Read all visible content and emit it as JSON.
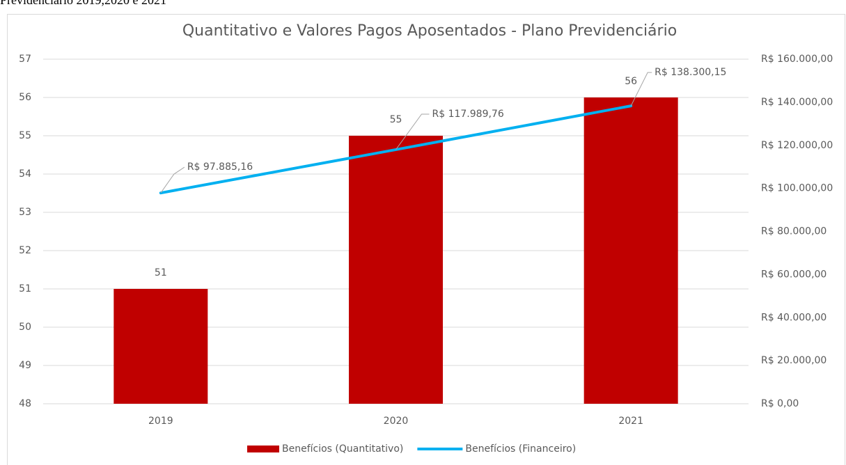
{
  "caption": "Previdenciário 2019,2020 e 2021",
  "chart_data": {
    "type": "combo",
    "title": "Quantitativo e Valores Pagos Aposentados - Plano Previdenciário",
    "categories": [
      "2019",
      "2020",
      "2021"
    ],
    "series": [
      {
        "name": "Benefícios (Quantitativo)",
        "type": "bar",
        "color": "#c00000",
        "axis": "y",
        "values": [
          51,
          55,
          56
        ]
      },
      {
        "name": "Benefícios (Financeiro)",
        "type": "line",
        "color": "#00b0f0",
        "axis": "y2",
        "values": [
          97885.16,
          117989.76,
          138300.15
        ],
        "value_labels": [
          "R$ 97.885,16",
          "R$ 117.989,76",
          "R$ 138.300,15"
        ]
      }
    ],
    "ylim": [
      48,
      57
    ],
    "yticks": [
      48,
      49,
      50,
      51,
      52,
      53,
      54,
      55,
      56,
      57
    ],
    "y2lim": [
      0,
      160000
    ],
    "y2ticks": [
      {
        "value": 0,
        "label": "R$ 0,00"
      },
      {
        "value": 20000,
        "label": "R$ 20.000,00"
      },
      {
        "value": 40000,
        "label": "R$ 40.000,00"
      },
      {
        "value": 60000,
        "label": "R$ 60.000,00"
      },
      {
        "value": 80000,
        "label": "R$ 80.000,00"
      },
      {
        "value": 100000,
        "label": "R$ 100.000,00"
      },
      {
        "value": 120000,
        "label": "R$ 120.000,00"
      },
      {
        "value": 140000,
        "label": "R$ 140.000,00"
      },
      {
        "value": 160000,
        "label": "R$ 160.000,00"
      }
    ],
    "grid": true,
    "legend": "bottom"
  }
}
